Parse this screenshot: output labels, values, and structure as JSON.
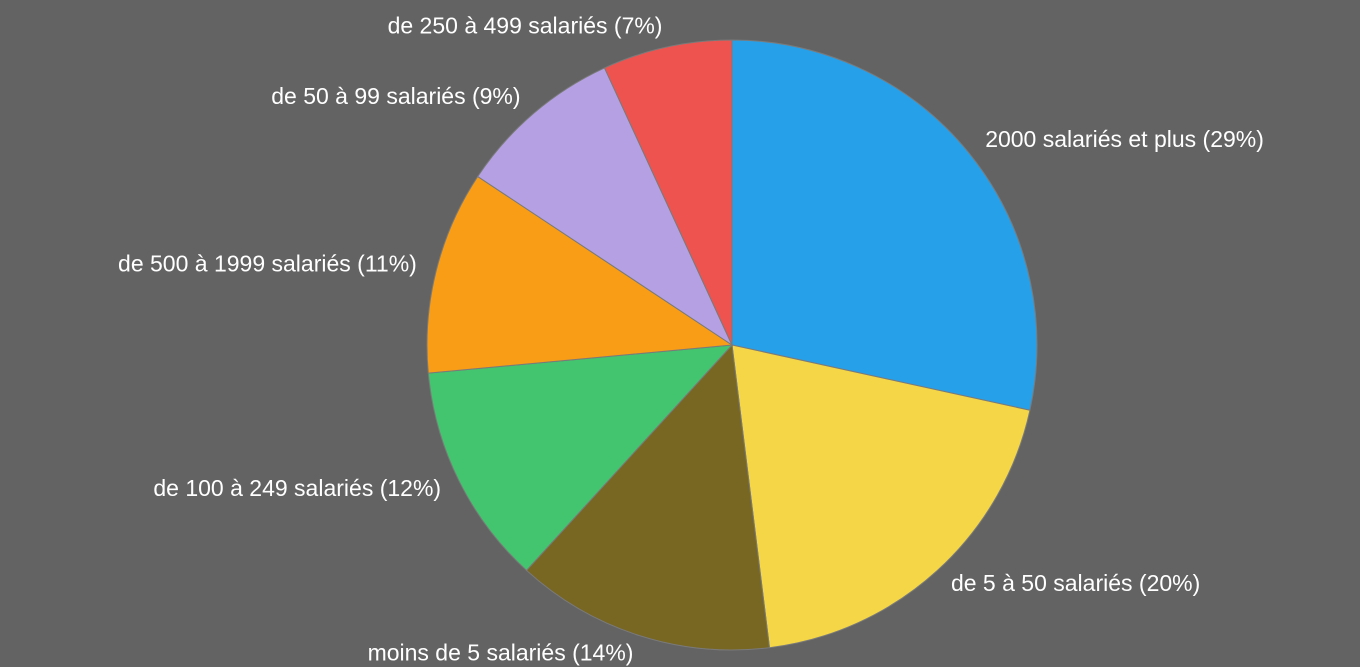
{
  "chart_data": {
    "type": "pie",
    "categories": [
      "2000 salariés et plus",
      "de 5 à 50 salariés",
      "moins de 5 salariés",
      "de 100 à 249 salariés",
      "de 500 à 1999 salariés",
      "de 50 à 99 salariés",
      "de 250 à 499 salariés"
    ],
    "values": [
      29,
      20,
      14,
      12,
      11,
      9,
      7
    ],
    "value_labels": [
      "(29%)",
      "(20%)",
      "(14%)",
      "(12%)",
      "(11%)",
      "(9%)",
      "(7%)"
    ],
    "colors": [
      "#27a0ea",
      "#f4d646",
      "#786623",
      "#43c46e",
      "#f99d16",
      "#b4a0e2",
      "#ef5350"
    ]
  }
}
